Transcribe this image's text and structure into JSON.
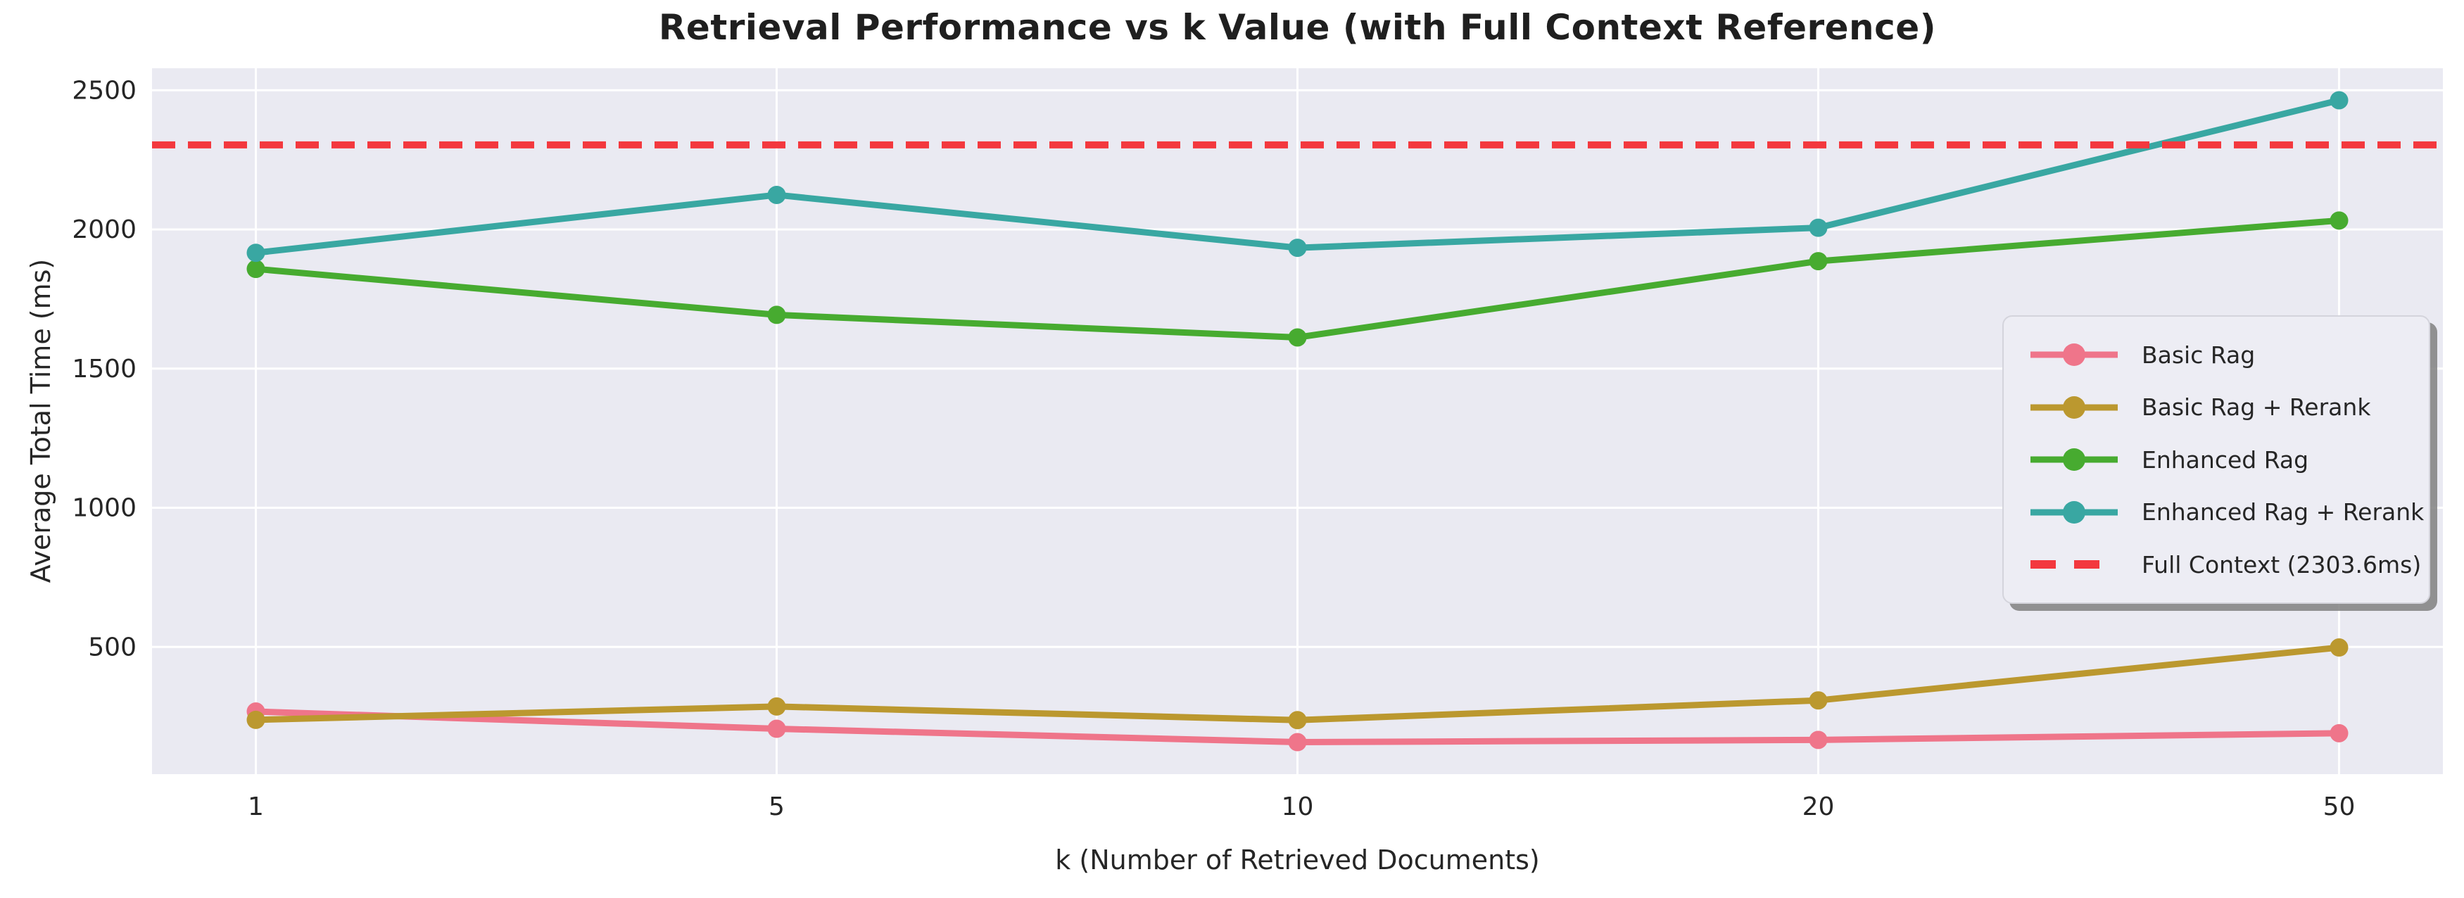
{
  "chart_data": {
    "type": "line",
    "title": "Retrieval Performance vs k Value (with Full Context Reference)",
    "xlabel": "k (Number of Retrieved Documents)",
    "ylabel": "Average Total Time (ms)",
    "categories": [
      "1",
      "5",
      "10",
      "20",
      "50"
    ],
    "x_values": [
      1,
      5,
      10,
      20,
      50
    ],
    "yticks": [
      500,
      1000,
      1500,
      2000,
      2500
    ],
    "ylim": [
      43,
      2579
    ],
    "grid": true,
    "legend_position": "center-right",
    "series": [
      {
        "name": "Basic Rag",
        "color": "#ef758a",
        "marker": "circle",
        "values": [
          268,
          206,
          158,
          166,
          190
        ]
      },
      {
        "name": "Basic Rag + Rerank",
        "color": "#bb982f",
        "marker": "circle",
        "values": [
          238,
          286,
          237,
          308,
          498
        ]
      },
      {
        "name": "Enhanced Rag",
        "color": "#47ab30",
        "marker": "circle",
        "values": [
          1858,
          1693,
          1612,
          1886,
          2032
        ]
      },
      {
        "name": "Enhanced Rag + Rerank",
        "color": "#39a7a2",
        "marker": "circle",
        "values": [
          1916,
          2124,
          1934,
          2006,
          2464
        ]
      }
    ],
    "reference_line": {
      "label": "Full Context (2303.6ms)",
      "value": 2303.6,
      "color": "#f3383e",
      "style": "dashed"
    }
  },
  "style_colors": {
    "plot_background": "#eaeaf2",
    "grid_color": "#ffffff",
    "text_color": "#262626",
    "title_color": "#1f1f1f"
  }
}
